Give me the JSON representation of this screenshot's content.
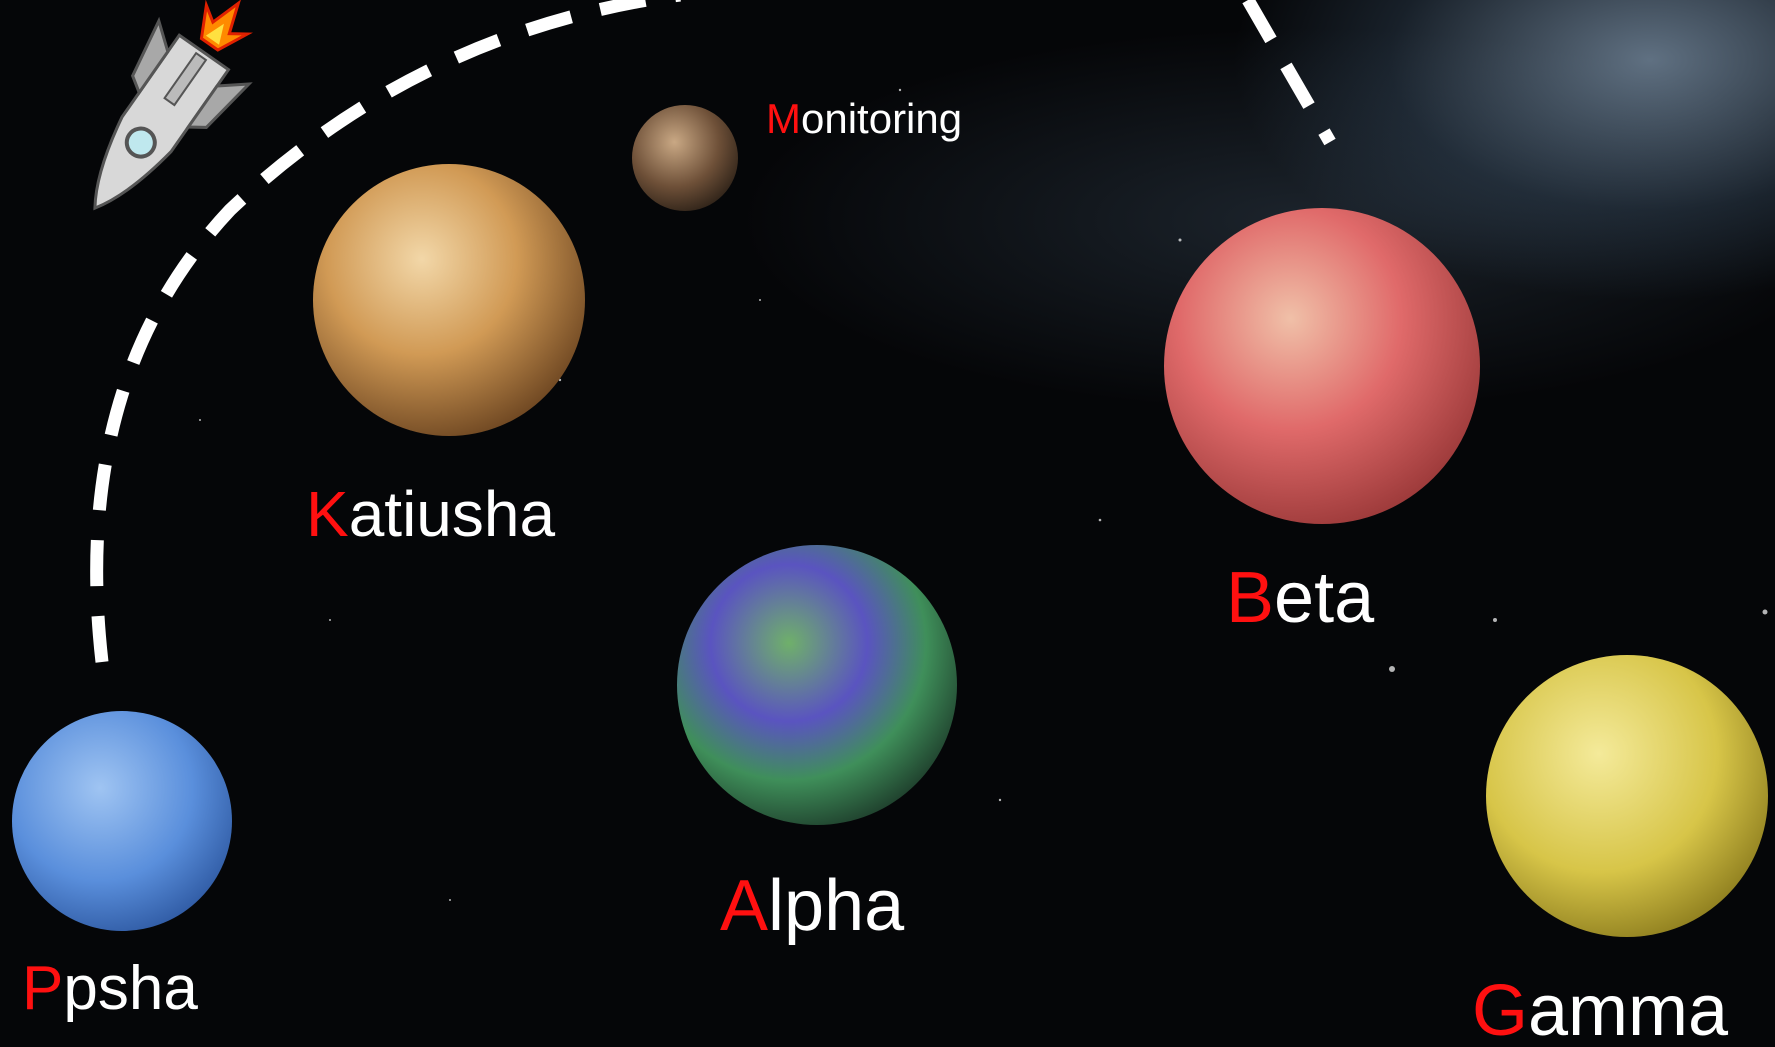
{
  "labels": {
    "monitoring": "Monitoring",
    "katiusha": "Katiusha",
    "alpha": "Alpha",
    "beta": "Beta",
    "ppsha": "Ppsha",
    "gamma": "Gamma"
  }
}
